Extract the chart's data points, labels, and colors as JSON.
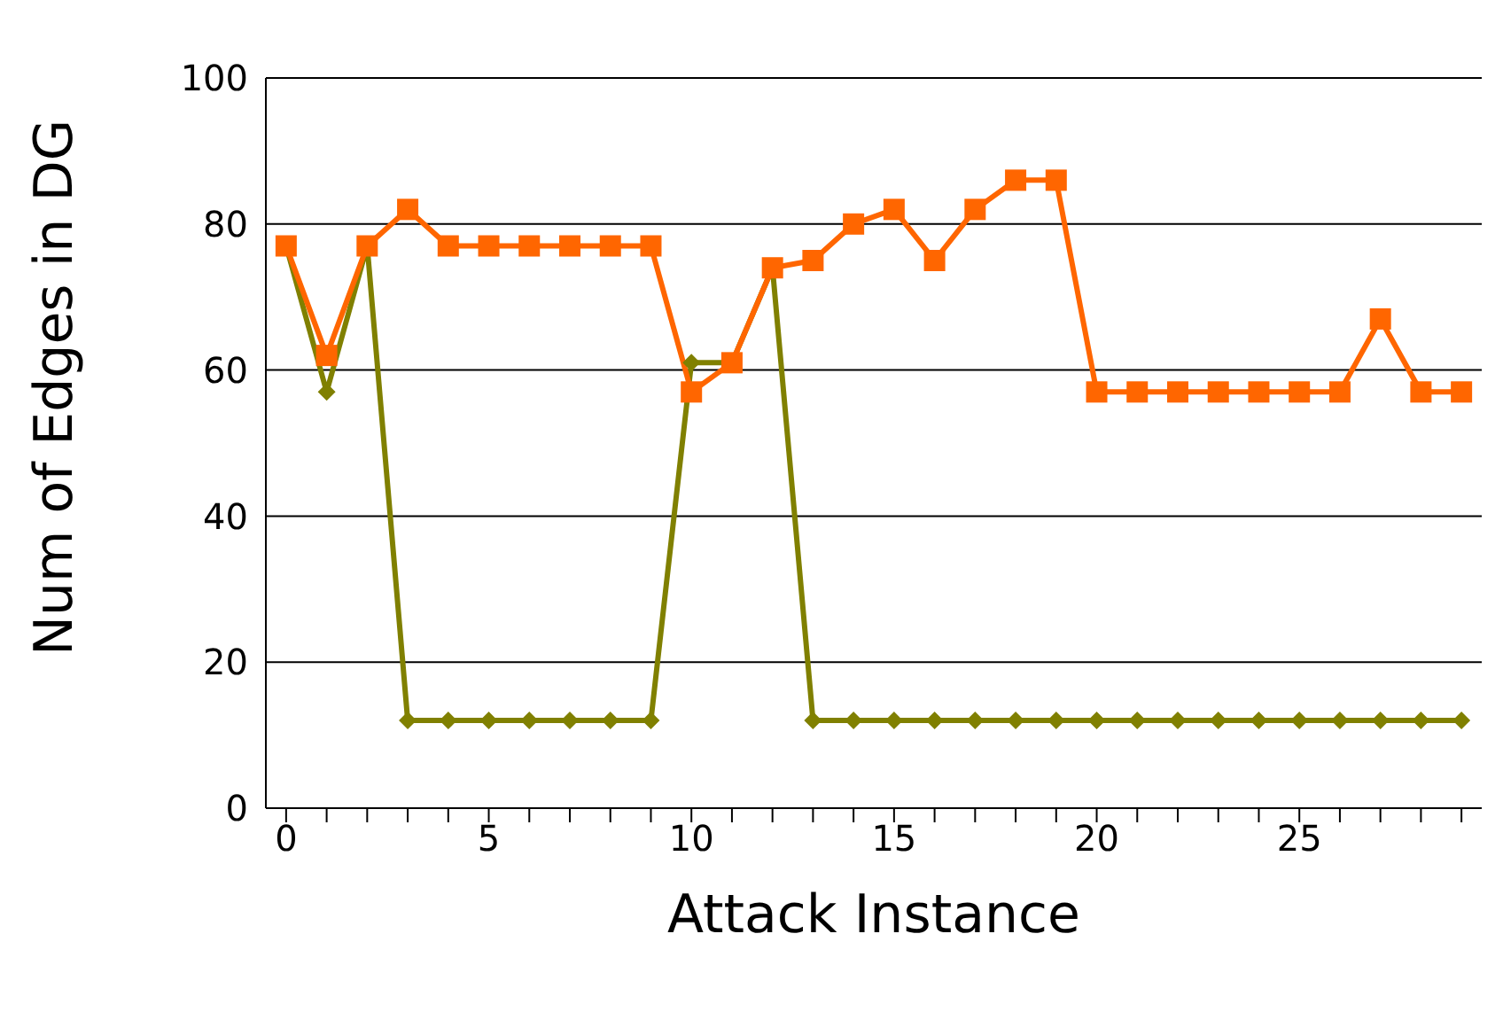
{
  "chart_data": {
    "type": "line",
    "xlabel": "Attack Instance",
    "ylabel": "Num of Edges in DG",
    "x": [
      0,
      1,
      2,
      3,
      4,
      5,
      6,
      7,
      8,
      9,
      10,
      11,
      12,
      13,
      14,
      15,
      16,
      17,
      18,
      19,
      20,
      21,
      22,
      23,
      24,
      25,
      26,
      27,
      28,
      29
    ],
    "series": [
      {
        "color": "#808000",
        "marker": "diamond",
        "values": [
          77,
          57,
          77,
          12,
          12,
          12,
          12,
          12,
          12,
          12,
          61,
          61,
          74,
          12,
          12,
          12,
          12,
          12,
          12,
          12,
          12,
          12,
          12,
          12,
          12,
          12,
          12,
          12,
          12,
          12
        ]
      },
      {
        "color": "#ff6600",
        "marker": "square",
        "values": [
          77,
          62,
          77,
          82,
          77,
          77,
          77,
          77,
          77,
          77,
          57,
          61,
          74,
          75,
          80,
          82,
          75,
          82,
          86,
          86,
          57,
          57,
          57,
          57,
          57,
          57,
          57,
          67,
          57,
          57
        ]
      }
    ],
    "xlim": [
      -0.5,
      29.5
    ],
    "xticks": [
      0,
      {
        "value": 1,
        "label": null
      },
      {
        "value": 2,
        "label": null
      },
      {
        "value": 3,
        "label": null
      },
      {
        "value": 4,
        "label": null
      },
      5,
      {
        "value": 6,
        "label": null
      },
      {
        "value": 7,
        "label": null
      },
      {
        "value": 8,
        "label": null
      },
      {
        "value": 9,
        "label": null
      },
      10,
      {
        "value": 11,
        "label": null
      },
      {
        "value": 12,
        "label": null
      },
      {
        "value": 13,
        "label": null
      },
      {
        "value": 14,
        "label": null
      },
      15,
      {
        "value": 16,
        "label": null
      },
      {
        "value": 17,
        "label": null
      },
      {
        "value": 18,
        "label": null
      },
      {
        "value": 19,
        "label": null
      },
      20,
      {
        "value": 21,
        "label": null
      },
      {
        "value": 22,
        "label": null
      },
      {
        "value": 23,
        "label": null
      },
      {
        "value": 24,
        "label": null
      },
      25,
      {
        "value": 26,
        "label": null
      },
      {
        "value": 27,
        "label": null
      },
      {
        "value": 28,
        "label": null
      },
      {
        "value": 29,
        "label": null
      }
    ],
    "ylim": [
      0,
      100
    ],
    "yticks": [
      0,
      20,
      40,
      60,
      80,
      100
    ],
    "grid": "y",
    "legend": false,
    "line_style": "solid"
  }
}
